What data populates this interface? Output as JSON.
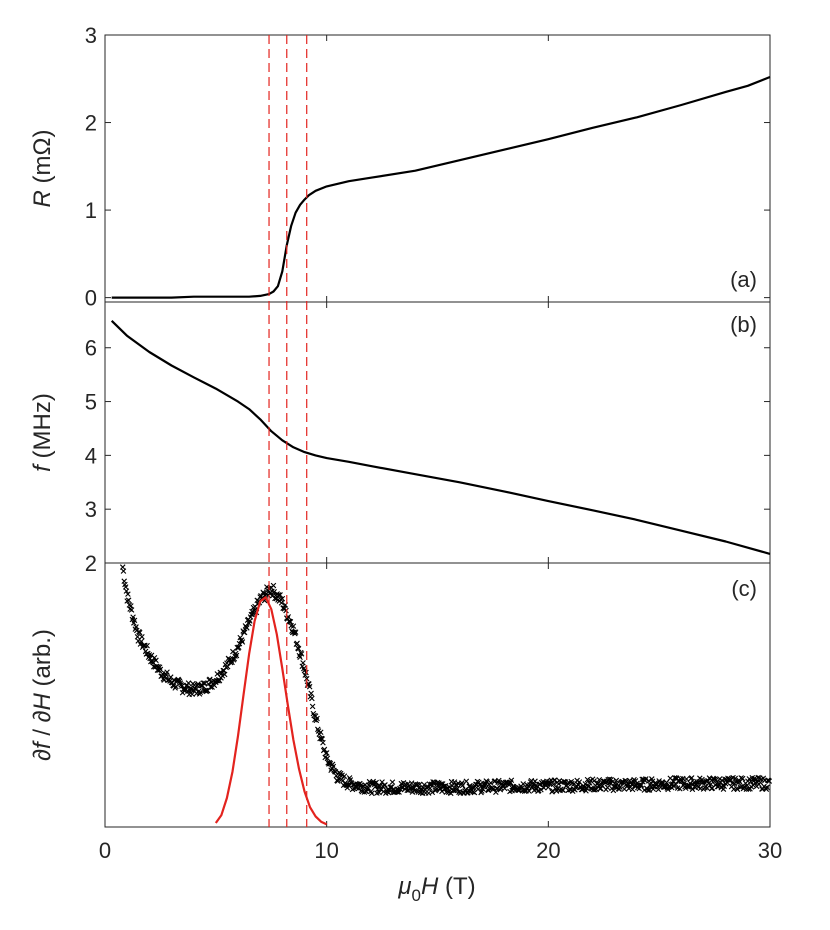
{
  "chart_data": {
    "type": "line",
    "xlabel": "μ0H (T)",
    "xlabel_parts": {
      "mu": "μ",
      "sub": "0",
      "H": "H",
      "unit": " (T)"
    },
    "xlim": [
      0,
      30
    ],
    "xticks": [
      0,
      10,
      20,
      30
    ],
    "xtick_labels": [
      "0",
      "10",
      "20",
      "30"
    ],
    "vlines": {
      "x": [
        7.4,
        8.2,
        9.1
      ],
      "color": "#e3231e",
      "style": "dashed"
    },
    "panels": [
      {
        "tag": "(a)",
        "ylabel": "R (mΩ)",
        "ylabel_parts": {
          "var": "R",
          "unit": " (mΩ)"
        },
        "ylim": [
          -0.05,
          3.0
        ],
        "yticks": [
          0,
          1,
          2,
          3
        ],
        "ytick_labels": [
          "0",
          "1",
          "2",
          "3"
        ],
        "series": [
          {
            "name": "R",
            "color": "#000000",
            "x": [
              0.3,
              1.0,
              2.0,
              3.0,
              4.0,
              5.0,
              6.0,
              6.5,
              7.0,
              7.4,
              7.6,
              7.8,
              8.0,
              8.2,
              8.4,
              8.6,
              8.8,
              9.0,
              9.2,
              9.5,
              10.0,
              11.0,
              12.0,
              14.0,
              16.0,
              18.0,
              20.0,
              22.0,
              24.0,
              26.0,
              28.0,
              29.0,
              30.0
            ],
            "y": [
              0.0,
              0.0,
              0.0,
              0.0,
              0.01,
              0.01,
              0.01,
              0.01,
              0.02,
              0.04,
              0.07,
              0.13,
              0.3,
              0.6,
              0.82,
              0.97,
              1.06,
              1.12,
              1.17,
              1.22,
              1.27,
              1.33,
              1.37,
              1.45,
              1.57,
              1.69,
              1.81,
              1.94,
              2.06,
              2.2,
              2.35,
              2.42,
              2.52
            ]
          }
        ]
      },
      {
        "tag": "(b)",
        "ylabel": "f (MHz)",
        "ylabel_parts": {
          "var": "f",
          "unit": " (MHz)"
        },
        "ylim": [
          2.0,
          6.85
        ],
        "yticks": [
          3,
          4,
          5,
          6
        ],
        "ytick_labels": [
          "3",
          "4",
          "5",
          "6"
        ],
        "series": [
          {
            "name": "f",
            "color": "#000000",
            "x": [
              0.3,
              1.0,
              2.0,
              3.0,
              4.0,
              5.0,
              6.0,
              6.5,
              7.0,
              7.5,
              8.0,
              8.5,
              9.0,
              9.5,
              10.0,
              11.0,
              12.0,
              14.0,
              16.0,
              18.0,
              20.0,
              22.0,
              24.0,
              26.0,
              28.0,
              30.0
            ],
            "y": [
              6.5,
              6.22,
              5.92,
              5.67,
              5.45,
              5.24,
              5.0,
              4.86,
              4.67,
              4.45,
              4.28,
              4.15,
              4.06,
              4.0,
              3.95,
              3.88,
              3.8,
              3.65,
              3.5,
              3.33,
              3.15,
              2.98,
              2.8,
              2.6,
              2.4,
              2.17
            ]
          }
        ]
      },
      {
        "tag": "(c)",
        "ylabel": "∂f / ∂H (arb.)",
        "ylabel_parts": {
          "d1": "∂",
          "f": "f",
          "sep": " / ",
          "d2": "∂",
          "H": "H",
          "unit": " (arb.)"
        },
        "ylim": [
          0,
          2.0
        ],
        "yticks": [
          2
        ],
        "ytick_labels": [
          "2"
        ],
        "series": [
          {
            "name": "df/dH",
            "color": "#000000",
            "marker": "x",
            "x": [
              0.8,
              1.0,
              1.5,
              2.0,
              2.5,
              3.0,
              3.5,
              4.0,
              4.5,
              5.0,
              5.5,
              6.0,
              6.5,
              7.0,
              7.5,
              8.0,
              8.5,
              9.0,
              9.5,
              10.0,
              10.5,
              11.0,
              12.0,
              14.0,
              16.0,
              18.0,
              20.0,
              22.0,
              24.0,
              26.0,
              28.0,
              30.0
            ],
            "y": [
              1.97,
              1.75,
              1.45,
              1.3,
              1.18,
              1.1,
              1.06,
              1.04,
              1.06,
              1.12,
              1.22,
              1.36,
              1.55,
              1.72,
              1.81,
              1.7,
              1.5,
              1.2,
              0.82,
              0.52,
              0.38,
              0.33,
              0.3,
              0.3,
              0.3,
              0.31,
              0.31,
              0.32,
              0.32,
              0.33,
              0.33,
              0.33
            ]
          },
          {
            "name": "gaussian-fit",
            "color": "#e3231e",
            "x": [
              5.0,
              5.25,
              5.5,
              5.75,
              6.0,
              6.25,
              6.5,
              6.75,
              7.0,
              7.25,
              7.5,
              7.75,
              8.0,
              8.25,
              8.5,
              8.75,
              9.0,
              9.25,
              9.5,
              9.75,
              10.0
            ],
            "y": [
              0.03,
              0.09,
              0.22,
              0.42,
              0.69,
              1.0,
              1.31,
              1.56,
              1.71,
              1.74,
              1.65,
              1.46,
              1.2,
              0.92,
              0.66,
              0.44,
              0.27,
              0.15,
              0.08,
              0.04,
              0.02
            ]
          }
        ]
      }
    ]
  }
}
